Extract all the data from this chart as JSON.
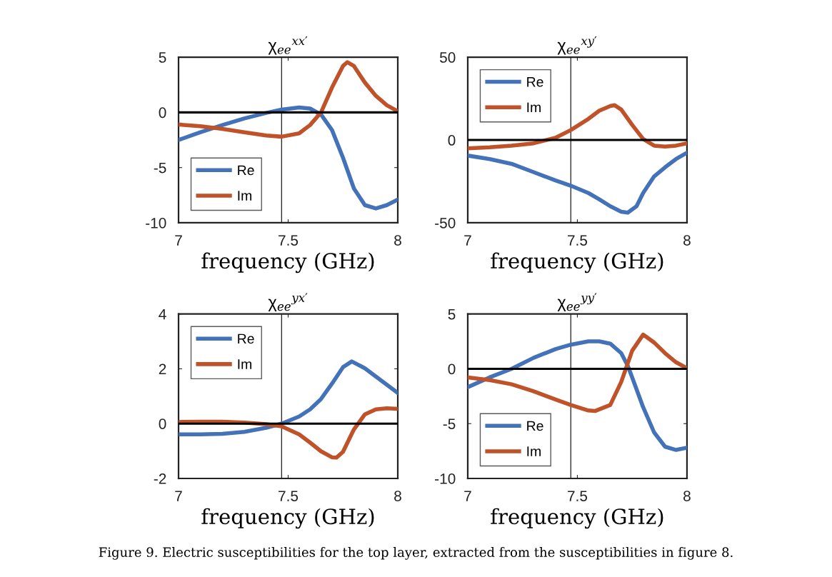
{
  "chart_data": [
    {
      "type": "line",
      "title": "χ$_{ee}$$^{xx′}$",
      "xlabel": "frequency (GHz)",
      "xlim": [
        7,
        8
      ],
      "xticks": [
        7,
        7.5,
        8
      ],
      "ylim": [
        -10,
        5
      ],
      "yticks": [
        -10,
        -5,
        0,
        5
      ],
      "legend": "bottom left",
      "grid": false,
      "x": [
        7.0,
        7.1,
        7.2,
        7.3,
        7.4,
        7.47,
        7.55,
        7.6,
        7.65,
        7.7,
        7.75,
        7.8,
        7.85,
        7.9,
        7.95,
        8.0
      ],
      "series": [
        {
          "name": "Re",
          "color": "#4472b8",
          "values": [
            -2.5,
            -1.8,
            -1.15,
            -0.55,
            -0.05,
            0.25,
            0.45,
            0.35,
            -0.2,
            -1.6,
            -4.1,
            -6.9,
            -8.4,
            -8.7,
            -8.4,
            -7.9
          ]
        },
        {
          "name": "Im",
          "color": "#c0522a",
          "x": [
            7.0,
            7.1,
            7.2,
            7.3,
            7.4,
            7.47,
            7.55,
            7.6,
            7.65,
            7.7,
            7.75,
            7.77,
            7.8,
            7.85,
            7.9,
            7.95,
            8.0
          ],
          "values": [
            -1.1,
            -1.25,
            -1.5,
            -1.8,
            -2.1,
            -2.2,
            -1.9,
            -1.15,
            0,
            2.25,
            4.2,
            4.55,
            4.2,
            2.7,
            1.5,
            0.65,
            0.1
          ]
        }
      ],
      "ref_lines": [
        {
          "axis": "y",
          "value": 0,
          "color": "#000000"
        },
        {
          "axis": "x",
          "value": 7.47,
          "color": "#000000"
        }
      ],
      "annotations": [
        "Figure 9. Electric susceptibilities for the top layer, extracted from the susceptibilities in figure 8."
      ]
    },
    {
      "type": "line",
      "title": "χ$_{ee}$$^{xy′}$",
      "xlabel": "frequency (GHz)",
      "xlim": [
        7,
        8
      ],
      "xticks": [
        7,
        7.5,
        8
      ],
      "ylim": [
        -50,
        50
      ],
      "yticks": [
        -50,
        0,
        50
      ],
      "legend": "top left",
      "grid": false,
      "x": [
        7.0,
        7.1,
        7.2,
        7.3,
        7.4,
        7.47,
        7.55,
        7.6,
        7.65,
        7.7,
        7.73,
        7.77,
        7.8,
        7.85,
        7.9,
        7.95,
        8.0
      ],
      "series": [
        {
          "name": "Re",
          "color": "#4472b8",
          "values": [
            -9.4,
            -11.5,
            -14.4,
            -19.4,
            -24.4,
            -27.6,
            -32,
            -35.8,
            -40,
            -43.3,
            -43.9,
            -40,
            -32,
            -22,
            -16.5,
            -11.5,
            -7.7
          ]
        },
        {
          "name": "Im",
          "color": "#c0522a",
          "x": [
            7.0,
            7.1,
            7.2,
            7.3,
            7.4,
            7.47,
            7.55,
            7.6,
            7.65,
            7.67,
            7.7,
            7.75,
            7.8,
            7.85,
            7.9,
            7.95,
            8.0
          ],
          "values": [
            -5.1,
            -4.4,
            -3.4,
            -2,
            1.3,
            6,
            12.7,
            17.7,
            20.5,
            21,
            18.4,
            9.1,
            0.6,
            -3.4,
            -4,
            -3.4,
            -2
          ]
        }
      ],
      "ref_lines": [
        {
          "axis": "y",
          "value": 0,
          "color": "#000000"
        },
        {
          "axis": "x",
          "value": 7.47,
          "color": "#000000"
        }
      ]
    },
    {
      "type": "line",
      "title": "χ$_{ee}$$^{yx′}$",
      "xlabel": "frequency (GHz)",
      "xlim": [
        7,
        8
      ],
      "xticks": [
        7,
        7.5,
        8
      ],
      "ylim": [
        -2,
        4
      ],
      "yticks": [
        -2,
        0,
        2,
        4
      ],
      "legend": "top left",
      "grid": false,
      "x": [
        7.0,
        7.1,
        7.2,
        7.3,
        7.4,
        7.47,
        7.55,
        7.6,
        7.65,
        7.7,
        7.75,
        7.79,
        7.85,
        7.9,
        7.95,
        8.0
      ],
      "series": [
        {
          "name": "Re",
          "color": "#4472b8",
          "values": [
            -0.39,
            -0.39,
            -0.37,
            -0.3,
            -0.15,
            0,
            0.26,
            0.52,
            0.9,
            1.46,
            2.06,
            2.27,
            2.02,
            1.72,
            1.42,
            1.12
          ]
        },
        {
          "name": "Im",
          "color": "#c0522a",
          "x": [
            7.0,
            7.1,
            7.2,
            7.3,
            7.4,
            7.47,
            7.55,
            7.6,
            7.65,
            7.7,
            7.72,
            7.75,
            7.8,
            7.85,
            7.9,
            7.95,
            8.0
          ],
          "values": [
            0.06,
            0.07,
            0.07,
            0.04,
            -0.02,
            -0.1,
            -0.39,
            -0.69,
            -1.01,
            -1.23,
            -1.24,
            -1.03,
            -0.21,
            0.34,
            0.52,
            0.56,
            0.54
          ]
        }
      ],
      "ref_lines": [
        {
          "axis": "y",
          "value": 0,
          "color": "#000000"
        },
        {
          "axis": "x",
          "value": 7.47,
          "color": "#000000"
        }
      ]
    },
    {
      "type": "line",
      "title": "χ$_{ee}$$^{yy′}$",
      "xlabel": "frequency (GHz)",
      "xlim": [
        7,
        8
      ],
      "xticks": [
        7,
        7.5,
        8
      ],
      "ylim": [
        -10,
        5
      ],
      "yticks": [
        -10,
        -5,
        0,
        5
      ],
      "legend": "bottom left",
      "grid": false,
      "x": [
        7.0,
        7.1,
        7.2,
        7.3,
        7.4,
        7.47,
        7.55,
        7.6,
        7.65,
        7.7,
        7.73,
        7.75,
        7.8,
        7.85,
        7.9,
        7.95,
        8.0
      ],
      "series": [
        {
          "name": "Re",
          "color": "#4472b8",
          "values": [
            -1.67,
            -0.78,
            0,
            1.0,
            1.8,
            2.2,
            2.5,
            2.5,
            2.3,
            1.43,
            0.27,
            -0.78,
            -3.5,
            -5.8,
            -7.1,
            -7.4,
            -7.2
          ]
        },
        {
          "name": "Im",
          "color": "#c0522a",
          "x": [
            7.0,
            7.1,
            7.2,
            7.3,
            7.4,
            7.47,
            7.55,
            7.58,
            7.65,
            7.7,
            7.75,
            7.8,
            7.85,
            7.9,
            7.95,
            8.0
          ],
          "values": [
            -0.78,
            -1.03,
            -1.41,
            -2.05,
            -2.8,
            -3.3,
            -3.8,
            -3.85,
            -3.3,
            -1.2,
            1.65,
            3.12,
            2.4,
            1.43,
            0.6,
            0.06
          ]
        }
      ],
      "ref_lines": [
        {
          "axis": "y",
          "value": 0,
          "color": "#000000"
        },
        {
          "axis": "x",
          "value": 7.47,
          "color": "#000000"
        }
      ]
    }
  ]
}
